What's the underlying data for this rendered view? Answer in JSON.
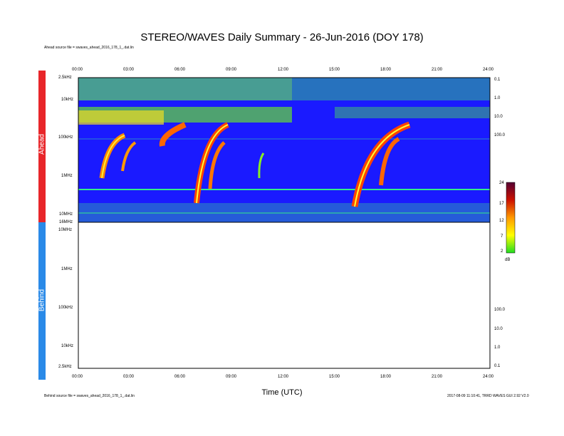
{
  "title": "STEREO/WAVES Daily Summary - 26-Jun-2016 (DOY 178)",
  "ahead_source": "Ahead source file = swaves_ahead_2016_178_1_.dat.lin",
  "behind_source": "Behind source file = swaves_ahead_2016_178_1_.dat.lin",
  "footer_right": "2017-08-09 11:10:41, TRRD WAVES GUI 2.92 V2.0",
  "colors": {
    "ahead": "#e8262a",
    "behind": "#2a8ae8",
    "background": "#1a1aff"
  },
  "chart_data": [
    {
      "panel": "Ahead",
      "type": "heatmap",
      "xlabel": "Time (UTC)",
      "x_ticks": [
        "00:00",
        "03:00",
        "06:00",
        "09:00",
        "12:00",
        "15:00",
        "18:00",
        "21:00",
        "24:00"
      ],
      "y_ticks_left": [
        "2.5kHz",
        "10kHz",
        "100kHz",
        "1MHz",
        "10MHz",
        "16MHz"
      ],
      "y_ticks_right": [
        "0.1",
        "1.0",
        "10.0",
        "100.0"
      ],
      "colorbar": {
        "ticks": [
          "24",
          "17",
          "12",
          "7",
          "2"
        ],
        "unit": "dB",
        "range": [
          2,
          24
        ]
      },
      "bursts_utc_hours": [
        1.5,
        2.8,
        6.8,
        7.7,
        10.4,
        16.3,
        17.6
      ]
    },
    {
      "panel": "Behind",
      "type": "heatmap",
      "x_ticks": [
        "00:00",
        "03:00",
        "06:00",
        "09:00",
        "12:00",
        "15:00",
        "18:00",
        "21:00",
        "24:00"
      ],
      "y_ticks_left": [
        "10MHz",
        "1MHz",
        "100kHz",
        "10kHz",
        "2.5kHz"
      ],
      "y_ticks_right": [
        "100.0",
        "10.0",
        "1.0",
        "0.1"
      ]
    }
  ]
}
